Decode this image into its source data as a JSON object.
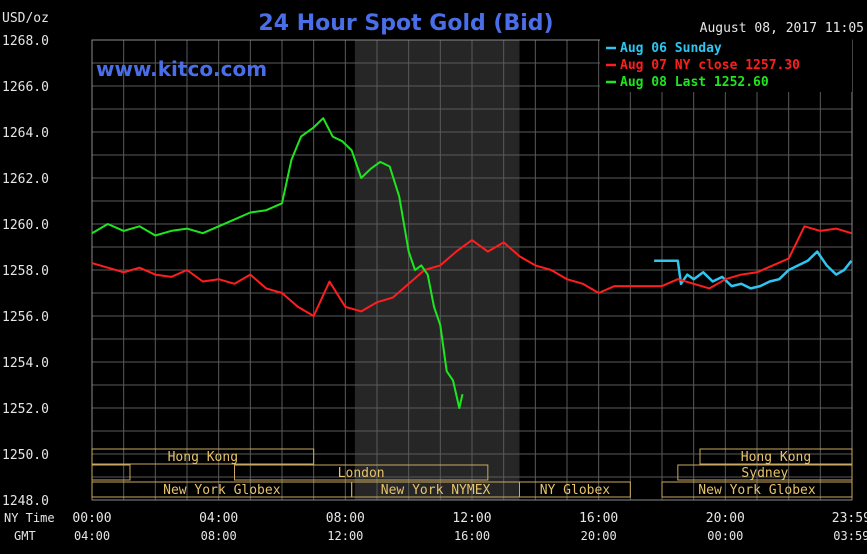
{
  "chart_data": {
    "type": "line",
    "title": "24 Hour Spot Gold (Bid)",
    "ylabel": "USD/oz",
    "site": "www.kitco.com",
    "timestamp": "August 08, 2017 11:05",
    "ylim": [
      1248.0,
      1268.0
    ],
    "xlim": [
      0,
      24
    ],
    "y_ticks": [
      "1248.0",
      "1250.0",
      "1252.0",
      "1254.0",
      "1256.0",
      "1258.0",
      "1260.0",
      "1262.0",
      "1264.0",
      "1266.0",
      "1268.0"
    ],
    "x_axis_label_ny": "NY Time",
    "x_axis_label_gmt": "GMT",
    "x_ticks_ny": [
      "00:00",
      "04:00",
      "08:00",
      "12:00",
      "16:00",
      "20:00",
      "23:59"
    ],
    "x_ticks_gmt": [
      "04:00",
      "08:00",
      "12:00",
      "16:00",
      "20:00",
      "00:00",
      "03:59"
    ],
    "grid": true,
    "legend_position": "top-right",
    "highlight_band": [
      8.3,
      13.5
    ],
    "series": [
      {
        "name": "Aug 06 Sunday",
        "color": "#2ec5f0",
        "x": [
          17.75,
          18.5,
          18.6,
          18.8,
          19.0,
          19.3,
          19.6,
          19.9,
          20.2,
          20.5,
          20.8,
          21.1,
          21.4,
          21.7,
          22.0,
          22.3,
          22.6,
          22.9,
          23.2,
          23.5,
          23.75,
          23.98
        ],
        "y": [
          1258.4,
          1258.4,
          1257.4,
          1257.8,
          1257.6,
          1257.9,
          1257.5,
          1257.7,
          1257.3,
          1257.4,
          1257.2,
          1257.3,
          1257.5,
          1257.6,
          1258.0,
          1258.2,
          1258.4,
          1258.8,
          1258.2,
          1257.8,
          1258.0,
          1258.4
        ]
      },
      {
        "name": "Aug 07 NY close 1257.30",
        "color": "#ff1e1e",
        "x": [
          0,
          0.5,
          1.0,
          1.5,
          2.0,
          2.5,
          3.0,
          3.5,
          4.0,
          4.5,
          5.0,
          5.5,
          6.0,
          6.5,
          7.0,
          7.5,
          8.0,
          8.5,
          9.0,
          9.5,
          10.0,
          10.5,
          11.0,
          11.5,
          12.0,
          12.5,
          13.0,
          13.5,
          14.0,
          14.5,
          15.0,
          15.5,
          16.0,
          16.5,
          17.0,
          17.5,
          18.0,
          18.5,
          19.0,
          19.5,
          20.0,
          20.5,
          21.0,
          21.5,
          22.0,
          22.5,
          23.0,
          23.5,
          23.98
        ],
        "y": [
          1258.3,
          1258.1,
          1257.9,
          1258.1,
          1257.8,
          1257.7,
          1258.0,
          1257.5,
          1257.6,
          1257.4,
          1257.8,
          1257.2,
          1257.0,
          1256.4,
          1256.0,
          1257.5,
          1256.4,
          1256.2,
          1256.6,
          1256.8,
          1257.4,
          1258.0,
          1258.2,
          1258.8,
          1259.3,
          1258.8,
          1259.2,
          1258.6,
          1258.2,
          1258.0,
          1257.6,
          1257.4,
          1257.0,
          1257.3,
          1257.3,
          1257.3,
          1257.3,
          1257.6,
          1257.4,
          1257.2,
          1257.6,
          1257.8,
          1257.9,
          1258.2,
          1258.5,
          1259.9,
          1259.7,
          1259.8,
          1259.6
        ]
      },
      {
        "name": "Aug 08 Last 1252.60",
        "color": "#1ee61e",
        "x": [
          0,
          0.5,
          1.0,
          1.5,
          2.0,
          2.5,
          3.0,
          3.5,
          4.0,
          4.5,
          5.0,
          5.5,
          6.0,
          6.3,
          6.6,
          7.0,
          7.3,
          7.6,
          7.9,
          8.2,
          8.5,
          8.8,
          9.1,
          9.4,
          9.7,
          10.0,
          10.2,
          10.4,
          10.6,
          10.8,
          11.0,
          11.2,
          11.4,
          11.6,
          11.7
        ],
        "y": [
          1259.6,
          1260.0,
          1259.7,
          1259.9,
          1259.5,
          1259.7,
          1259.8,
          1259.6,
          1259.9,
          1260.2,
          1260.5,
          1260.6,
          1260.9,
          1262.8,
          1263.8,
          1264.2,
          1264.6,
          1263.8,
          1263.6,
          1263.2,
          1262.0,
          1262.4,
          1262.7,
          1262.5,
          1261.2,
          1258.8,
          1258.0,
          1258.2,
          1257.8,
          1256.4,
          1255.6,
          1253.6,
          1253.2,
          1252.0,
          1252.6
        ]
      }
    ],
    "sessions": [
      {
        "label": "Hong Kong",
        "start": 0,
        "end": 7.0,
        "row": 0
      },
      {
        "label": "Hong Kong",
        "start": 19.2,
        "end": 24,
        "row": 0
      },
      {
        "label": "",
        "start": 0,
        "end": 1.2,
        "row": 1
      },
      {
        "label": "London",
        "start": 4.5,
        "end": 12.5,
        "row": 1
      },
      {
        "label": "Sydney",
        "start": 18.5,
        "end": 24,
        "row": 1
      },
      {
        "label": "New York Globex",
        "start": 0,
        "end": 8.2,
        "row": 2
      },
      {
        "label": "New York NYMEX",
        "start": 8.2,
        "end": 13.5,
        "row": 2
      },
      {
        "label": "NY Globex",
        "start": 13.5,
        "end": 17.0,
        "row": 2
      },
      {
        "label": "New York Globex",
        "start": 18.0,
        "end": 24,
        "row": 2
      }
    ]
  }
}
